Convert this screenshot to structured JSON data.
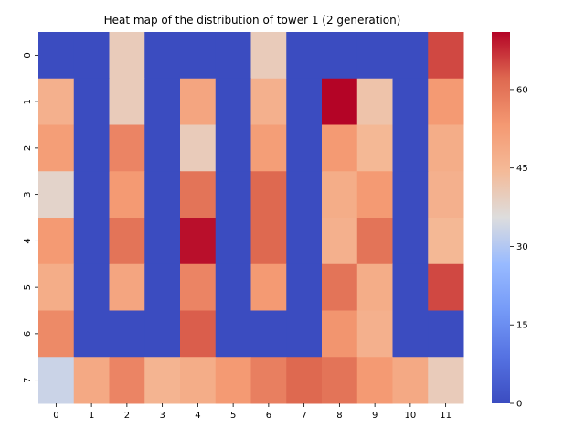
{
  "chart_data": {
    "type": "heatmap",
    "title": "Heat map of the distribution of tower 1 (2 generation)",
    "xlabel": "",
    "ylabel": "",
    "x_categories": [
      "0",
      "1",
      "2",
      "3",
      "4",
      "5",
      "6",
      "7",
      "8",
      "9",
      "10",
      "11"
    ],
    "y_categories": [
      "0",
      "1",
      "2",
      "3",
      "4",
      "5",
      "6",
      "7"
    ],
    "values": [
      [
        0,
        0,
        40,
        0,
        0,
        0,
        40,
        0,
        0,
        0,
        0,
        65
      ],
      [
        47,
        0,
        40,
        0,
        50,
        0,
        47,
        0,
        72,
        42,
        0,
        53
      ],
      [
        52,
        0,
        57,
        0,
        40,
        0,
        52,
        0,
        53,
        45,
        0,
        48
      ],
      [
        38,
        0,
        53,
        0,
        60,
        0,
        62,
        0,
        48,
        53,
        0,
        47
      ],
      [
        53,
        0,
        60,
        0,
        70,
        0,
        62,
        0,
        47,
        60,
        0,
        45
      ],
      [
        48,
        0,
        50,
        0,
        57,
        0,
        53,
        0,
        60,
        48,
        0,
        65
      ],
      [
        56,
        0,
        0,
        0,
        63,
        0,
        0,
        0,
        54,
        47,
        0,
        0
      ],
      [
        33,
        49,
        57,
        46,
        48,
        53,
        58,
        62,
        60,
        53,
        49,
        40
      ]
    ],
    "colormap": "coolwarm",
    "vmin": 0,
    "vmax": 71,
    "colorbar_ticks": [
      0,
      15,
      30,
      45,
      60
    ],
    "colorbar_tick_labels": [
      "0",
      "15",
      "30",
      "45",
      "60"
    ],
    "grid": false
  }
}
